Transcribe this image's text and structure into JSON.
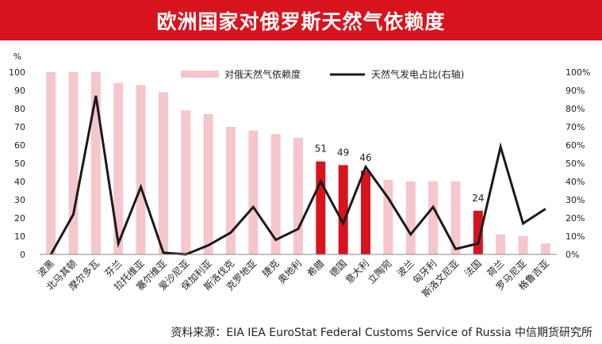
{
  "title": "欧洲国家对俄罗斯天然气依赖度",
  "source": "资料来源：EIA IEA EuroStat Federal Customs Service of Russia 中信期货研究所",
  "chart_data": {
    "type": "bar+line",
    "title": "欧洲国家对俄罗斯天然气依赖度",
    "left_axis_unit": "%",
    "ylim_left": [
      0,
      100
    ],
    "ylim_right": [
      0,
      100
    ],
    "left_ticks": [
      "0",
      "10",
      "20",
      "30",
      "40",
      "50",
      "60",
      "70",
      "80",
      "90",
      "100"
    ],
    "right_ticks": [
      "0%",
      "10%",
      "20%",
      "30%",
      "40%",
      "50%",
      "60%",
      "70%",
      "80%",
      "90%",
      "100%"
    ],
    "categories": [
      "波黑",
      "北马其顿",
      "摩尔多瓦",
      "芬兰",
      "拉托维亚",
      "塞尔维亚",
      "爱沙尼亚",
      "保加利亚",
      "斯洛伐克",
      "克罗地亚",
      "捷克",
      "奥地利",
      "希腊",
      "德国",
      "意大利",
      "立陶宛",
      "波兰",
      "匈牙利",
      "斯洛文尼亚",
      "法国",
      "荷兰",
      "罗马尼亚",
      "格鲁吉亚"
    ],
    "series": [
      {
        "name": "对俄天然气依赖度",
        "axis": "left",
        "type": "bar",
        "values": [
          100,
          100,
          100,
          94,
          93,
          89,
          79,
          77,
          70,
          68,
          66,
          64,
          51,
          49,
          46,
          41,
          40,
          40,
          40,
          24,
          11,
          10,
          6
        ]
      },
      {
        "name": "天然气发电占比(右轴)",
        "axis": "right",
        "type": "line",
        "values": [
          0,
          22,
          87,
          6,
          37,
          1,
          0,
          5,
          12,
          26,
          8,
          14,
          40,
          17,
          48,
          31,
          11,
          26,
          3,
          6,
          59,
          17,
          25
        ]
      }
    ],
    "highlight_categories": [
      "希腊",
      "德国",
      "意大利",
      "法国"
    ],
    "data_labels": [
      {
        "category": "希腊",
        "text": "51"
      },
      {
        "category": "德国",
        "text": "49"
      },
      {
        "category": "意大利",
        "text": "46"
      },
      {
        "category": "法国",
        "text": "24"
      }
    ],
    "colors": {
      "bar": "#f5c6cc",
      "bar_highlight": "#d7141e",
      "line": "#1a1a1a",
      "title_bg": "#d7141e"
    }
  }
}
